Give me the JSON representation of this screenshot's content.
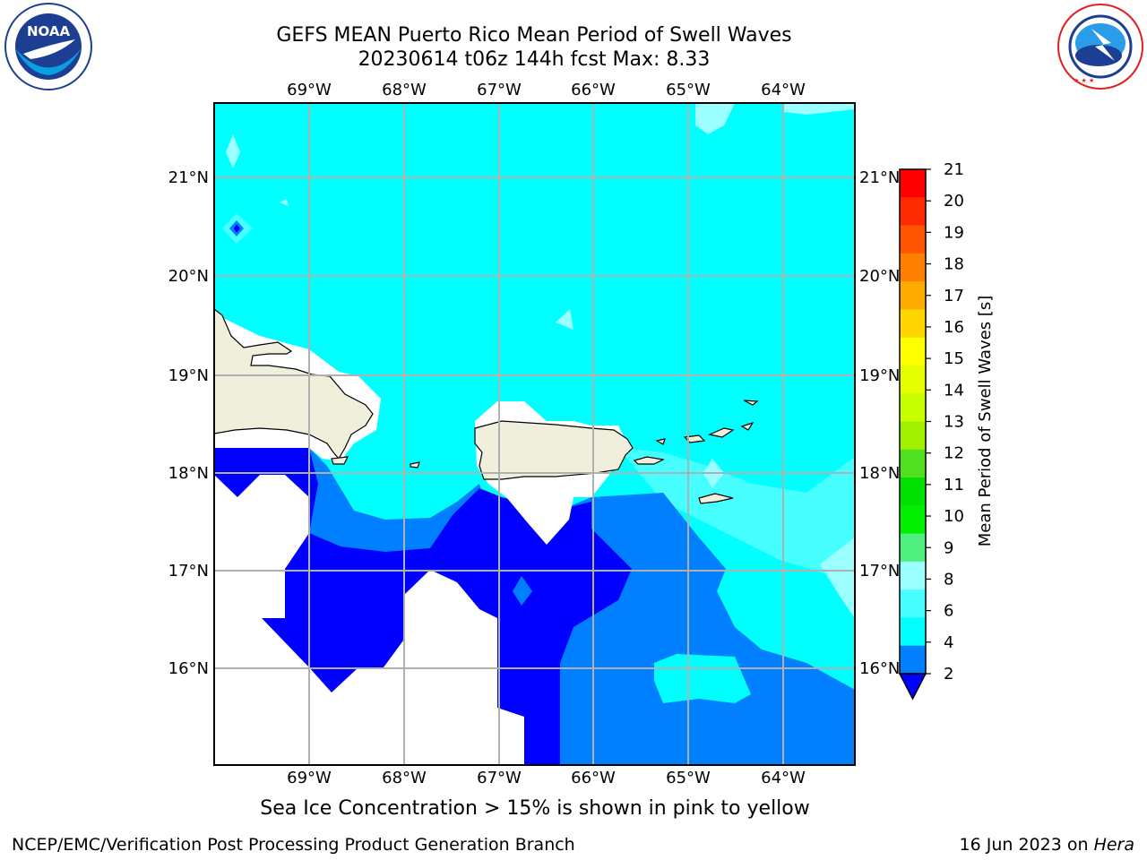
{
  "header": {
    "title_line1": "GEFS MEAN Puerto Rico Mean Period of Swell Waves",
    "title_line2": "20230614 t06z 144h fcst   Max: 8.33"
  },
  "logos": {
    "left": {
      "text": "NOAA",
      "ring_text": "NATIONAL OCEANIC AND ATMOSPHERIC ADMINISTRATION • U.S. DEPARTMENT OF COMMERCE",
      "icon": "noaa-logo"
    },
    "right": {
      "ring_text": "NATIONAL WEATHER SERVICE",
      "icon": "nws-logo"
    }
  },
  "map": {
    "lon_labels": [
      "69°W",
      "68°W",
      "67°W",
      "66°W",
      "65°W",
      "64°W"
    ],
    "lat_labels": [
      "21°N",
      "20°N",
      "19°N",
      "18°N",
      "17°N",
      "16°N"
    ],
    "land_color": "#efefdc",
    "ocean_colors": {
      "2-4": "#0080ff",
      "4-6": "#00ffff",
      "6-8": "#48ffff",
      "8-9": "#9cffff",
      "below-2": "#0000ff"
    }
  },
  "colorbar": {
    "label": "Mean Period of Swell Waves [s]",
    "ticks": [
      "21",
      "20",
      "19",
      "18",
      "17",
      "16",
      "15",
      "14",
      "13",
      "12",
      "11",
      "10",
      "9",
      "8",
      "6",
      "4",
      "2"
    ],
    "colors": [
      "#ff0000",
      "#ff2a00",
      "#ff5500",
      "#ff8000",
      "#ffaa00",
      "#ffd500",
      "#ffff00",
      "#e6ff00",
      "#c8ff00",
      "#a0f000",
      "#50e020",
      "#00e000",
      "#00f000",
      "#50f080",
      "#9cffff",
      "#48ffff",
      "#00ffff",
      "#0080ff"
    ],
    "under_color": "#0000ff"
  },
  "caption": "Sea Ice Concentration > 15% is shown in pink to yellow",
  "footer": {
    "left": "NCEP/EMC/Verification Post Processing Product Generation Branch",
    "date": "16 Jun 2023 on ",
    "machine": "Hera"
  }
}
